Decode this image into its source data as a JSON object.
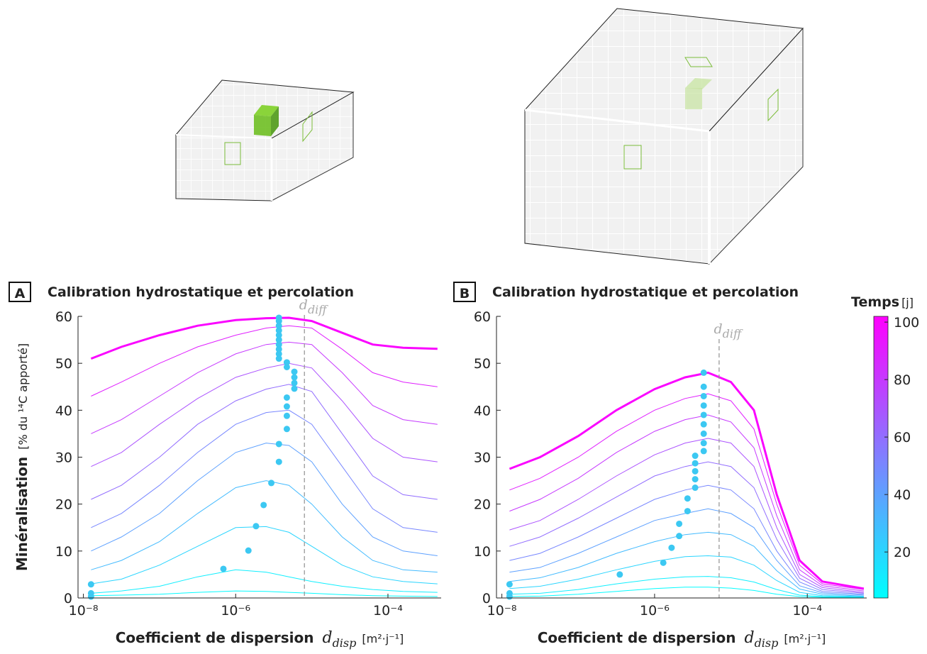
{
  "chart_data": [
    {
      "type": "line",
      "panel": "A",
      "title": "Calibration hydrostatique et percolation",
      "y_label": "Minéralisation",
      "y_unit": "[% du ¹⁴C apporté]",
      "x_label": "Coefficient de dispersion",
      "x_symbol": "d",
      "x_symbol_sub": "disp",
      "x_unit": "[m²·j⁻¹]",
      "log_x": true,
      "xlim": [
        8.5e-09,
        0.0005
      ],
      "ylim": [
        0,
        60
      ],
      "xticks": [
        {
          "value": 1e-08,
          "label": "10⁻⁸"
        },
        {
          "value": 1e-06,
          "label": "10⁻⁶"
        },
        {
          "value": 0.0001,
          "label": "10⁻⁴"
        }
      ],
      "yticks": [
        0,
        10,
        20,
        30,
        40,
        50,
        60
      ],
      "x": [
        1.26e-08,
        3.16e-08,
        1e-07,
        3.16e-07,
        1e-06,
        2.51e-06,
        5.01e-06,
        1e-05,
        2.51e-05,
        6.31e-05,
        0.000158,
        0.000447
      ],
      "series": [
        {
          "time": 5,
          "values": [
            0.5,
            0.6,
            0.8,
            1.2,
            1.5,
            1.4,
            1.2,
            1.0,
            0.7,
            0.5,
            0.4,
            0.3
          ]
        },
        {
          "time": 10,
          "values": [
            1,
            1.5,
            2.5,
            4.5,
            6,
            5.5,
            4.5,
            3.5,
            2.5,
            1.8,
            1.4,
            1.2
          ]
        },
        {
          "time": 20,
          "values": [
            3,
            4,
            7,
            11,
            15,
            15.2,
            14,
            11,
            7,
            4.5,
            3.5,
            3
          ]
        },
        {
          "time": 30,
          "values": [
            6,
            8,
            12,
            18,
            23.5,
            25,
            24,
            20,
            13,
            8,
            6,
            5.5
          ]
        },
        {
          "time": 40,
          "values": [
            10,
            13,
            18,
            25,
            31,
            33,
            32.5,
            29,
            20,
            13,
            10,
            9
          ]
        },
        {
          "time": 50,
          "values": [
            15,
            18,
            24,
            31,
            37,
            39.5,
            40,
            37,
            28,
            19,
            15,
            14
          ]
        },
        {
          "time": 60,
          "values": [
            21,
            24,
            30,
            37,
            42,
            44.5,
            45.5,
            44,
            35,
            26,
            22,
            21
          ]
        },
        {
          "time": 70,
          "values": [
            28,
            31,
            37,
            42.5,
            47,
            49,
            50,
            49,
            42,
            34,
            30,
            29
          ]
        },
        {
          "time": 80,
          "values": [
            35,
            38,
            43,
            48,
            52,
            54,
            54.5,
            54,
            48,
            41,
            38,
            37
          ]
        },
        {
          "time": 90,
          "values": [
            43,
            46,
            50,
            53.5,
            56,
            57.5,
            58,
            57.5,
            53,
            48,
            46,
            45
          ]
        },
        {
          "time": 100,
          "values": [
            51,
            53.5,
            56,
            58,
            59.2,
            59.6,
            59.7,
            59,
            56.5,
            54,
            53.3,
            53.1
          ]
        }
      ],
      "maxima": {
        "color": "#3cc8f2",
        "x": [
          1.26e-08,
          1.26e-08,
          1.26e-08,
          6.9e-07,
          1.47e-06,
          1.85e-06,
          2.33e-06,
          2.94e-06,
          3.7e-06,
          3.7e-06,
          4.7e-06,
          4.7e-06,
          4.7e-06,
          4.7e-06,
          5.9e-06,
          5.9e-06,
          5.9e-06,
          5.9e-06,
          4.7e-06,
          4.7e-06,
          3.7e-06,
          3.7e-06,
          3.7e-06,
          3.7e-06,
          3.7e-06,
          3.7e-06,
          3.7e-06,
          3.7e-06,
          3.7e-06,
          3.7e-06
        ],
        "y": [
          0.3,
          1,
          2.9,
          6.2,
          10.1,
          15.3,
          19.8,
          24.5,
          29,
          32.8,
          36,
          38.8,
          40.8,
          42.7,
          44.6,
          45.8,
          47,
          48.2,
          49.2,
          50.2,
          51,
          52,
          53,
          54,
          55,
          56,
          57,
          58,
          59,
          59.7
        ]
      },
      "annotation": {
        "text": "d",
        "sub": "diff",
        "x": 8e-06
      }
    },
    {
      "type": "line",
      "panel": "B",
      "title": "Calibration hydrostatique et percolation",
      "x_label": "Coefficient de dispersion",
      "x_symbol": "d",
      "x_symbol_sub": "disp",
      "x_unit": "[m²·j⁻¹]",
      "log_x": true,
      "xlim": [
        8.5e-09,
        0.0006
      ],
      "ylim": [
        0,
        60
      ],
      "xticks": [
        {
          "value": 1e-08,
          "label": "10⁻⁸"
        },
        {
          "value": 1e-06,
          "label": "10⁻⁶"
        },
        {
          "value": 0.0001,
          "label": "10⁻⁴"
        }
      ],
      "yticks": [
        0,
        10,
        20,
        30,
        40,
        50,
        60
      ],
      "x": [
        1.26e-08,
        3.16e-08,
        1e-07,
        3.16e-07,
        1e-06,
        2.51e-06,
        5.01e-06,
        1e-05,
        2e-05,
        3.98e-05,
        7.94e-05,
        0.000158,
        0.00055
      ],
      "series": [
        {
          "time": 5,
          "values": [
            0.3,
            0.4,
            0.8,
            1.4,
            2,
            2.3,
            2.3,
            2.1,
            1.6,
            0.8,
            0.3,
            0.15,
            0.1
          ]
        },
        {
          "time": 10,
          "values": [
            0.8,
            1,
            1.8,
            3,
            4,
            4.5,
            4.6,
            4.3,
            3.4,
            1.8,
            0.6,
            0.3,
            0.2
          ]
        },
        {
          "time": 20,
          "values": [
            2,
            2.5,
            4,
            6,
            7.8,
            8.8,
            9,
            8.7,
            7,
            3.7,
            1.2,
            0.5,
            0.3
          ]
        },
        {
          "time": 30,
          "values": [
            3.5,
            4.3,
            6.5,
            9.5,
            12,
            13.5,
            14,
            13.5,
            11,
            5.8,
            1.9,
            0.8,
            0.4
          ]
        },
        {
          "time": 40,
          "values": [
            5.5,
            6.5,
            9.5,
            13,
            16.5,
            18,
            19,
            18,
            15,
            8,
            2.6,
            1.1,
            0.6
          ]
        },
        {
          "time": 50,
          "values": [
            8,
            9.5,
            13,
            17,
            21,
            23,
            24,
            23,
            19,
            10,
            3.4,
            1.4,
            0.8
          ]
        },
        {
          "time": 60,
          "values": [
            11,
            13,
            17,
            21.5,
            26,
            28,
            29,
            28,
            23.5,
            12.5,
            4.2,
            1.8,
            1
          ]
        },
        {
          "time": 70,
          "values": [
            14.5,
            16.5,
            21,
            26,
            30.5,
            33,
            34,
            33,
            28,
            15,
            5,
            2.2,
            1.2
          ]
        },
        {
          "time": 80,
          "values": [
            18.5,
            21,
            25.5,
            31,
            35.5,
            38,
            39,
            37.5,
            32,
            17.5,
            6,
            2.6,
            1.5
          ]
        },
        {
          "time": 90,
          "values": [
            23,
            25.5,
            30,
            35.5,
            40,
            42.5,
            43.5,
            42,
            36,
            20,
            7,
            3,
            1.8
          ]
        },
        {
          "time": 100,
          "values": [
            27.5,
            30,
            34.5,
            40,
            44.5,
            47,
            48,
            46,
            40,
            22,
            8,
            3.5,
            2
          ]
        }
      ],
      "maxima": {
        "color": "#3cc8f2",
        "x": [
          1.26e-08,
          1.26e-08,
          1.26e-08,
          3.5e-07,
          1.3e-06,
          1.67e-06,
          2.1e-06,
          2.1e-06,
          2.7e-06,
          2.7e-06,
          3.4e-06,
          3.4e-06,
          3.4e-06,
          3.4e-06,
          3.4e-06,
          4.4e-06,
          4.4e-06,
          4.4e-06,
          4.4e-06,
          4.4e-06,
          4.4e-06,
          4.4e-06,
          4.4e-06,
          4.4e-06
        ],
        "y": [
          0.3,
          1,
          2.9,
          5,
          7.5,
          10.7,
          13.2,
          15.8,
          18.5,
          21.2,
          23.5,
          25.3,
          27,
          28.7,
          30.3,
          31.3,
          33,
          35,
          37,
          39,
          41,
          43,
          45,
          48
        ]
      },
      "annotation": {
        "text": "d",
        "sub": "diff",
        "x": 7e-06
      },
      "colorbar": {
        "label": "Temps",
        "unit": "[j]",
        "lim": [
          4,
          102
        ],
        "ticks": [
          20,
          40,
          60,
          80,
          100
        ],
        "colors": [
          "#00ffff",
          "#ff00ff"
        ]
      }
    }
  ]
}
